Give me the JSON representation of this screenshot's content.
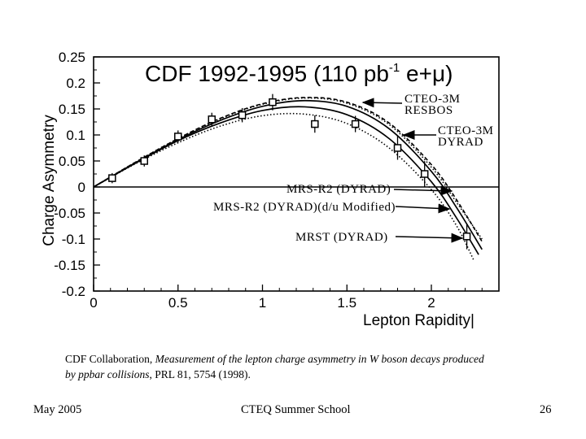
{
  "chart_data": {
    "type": "line",
    "title": "CDF 1992-1995 (110 pb",
    "title_sup": "-1",
    "title_tail": " e+μ)",
    "xlabel": "Lepton Rapidity|",
    "ylabel": "Charge Asymmetry",
    "xlim": [
      0,
      2.4
    ],
    "ylim": [
      -0.2,
      0.25
    ],
    "x_ticks": [
      "0",
      "0.5",
      "1",
      "1.5",
      "2"
    ],
    "y_ticks": [
      "0.25",
      "0.2",
      "0.15",
      "0.1",
      "0.05",
      "0",
      "-0.05",
      "-0.1",
      "-0.15",
      "-0.2"
    ],
    "data_points": [
      {
        "x": 0.11,
        "y": 0.017,
        "err": 0.005
      },
      {
        "x": 0.3,
        "y": 0.05,
        "err": 0.006
      },
      {
        "x": 0.5,
        "y": 0.097,
        "err": 0.007
      },
      {
        "x": 0.7,
        "y": 0.13,
        "err": 0.008
      },
      {
        "x": 0.88,
        "y": 0.138,
        "err": 0.009
      },
      {
        "x": 1.06,
        "y": 0.163,
        "err": 0.011
      },
      {
        "x": 1.31,
        "y": 0.121,
        "err": 0.012
      },
      {
        "x": 1.55,
        "y": 0.121,
        "err": 0.011
      },
      {
        "x": 1.8,
        "y": 0.075,
        "err": 0.018
      },
      {
        "x": 1.96,
        "y": 0.025,
        "err": 0.02
      },
      {
        "x": 2.21,
        "y": -0.095,
        "err": 0.02
      }
    ],
    "series": [
      {
        "name": "CTEO-3M RESBOS",
        "style": "dashed",
        "color": "#000000",
        "x": [
          0,
          0.25,
          0.5,
          0.75,
          1.0,
          1.25,
          1.5,
          1.75,
          2.0,
          2.15,
          2.3
        ],
        "y": [
          0,
          0.048,
          0.093,
          0.132,
          0.16,
          0.172,
          0.163,
          0.123,
          0.043,
          -0.025,
          -0.105
        ]
      },
      {
        "name": "MRS-R2 (DYRAD)",
        "style": "dotted",
        "color": "#000000",
        "x": [
          0,
          0.25,
          0.5,
          0.75,
          1.0,
          1.25,
          1.5,
          1.75,
          2.0,
          2.15,
          2.3
        ],
        "y": [
          0,
          0.048,
          0.093,
          0.131,
          0.159,
          0.171,
          0.161,
          0.12,
          0.038,
          -0.03,
          -0.1
        ]
      },
      {
        "name": "CTEO-3M DYRAD",
        "style": "solid",
        "color": "#000000",
        "x": [
          0,
          0.25,
          0.5,
          0.75,
          1.0,
          1.25,
          1.5,
          1.75,
          2.0,
          2.15,
          2.3
        ],
        "y": [
          0,
          0.047,
          0.091,
          0.128,
          0.155,
          0.166,
          0.155,
          0.112,
          0.03,
          -0.04,
          -0.12
        ]
      },
      {
        "name": "MRS-R2 (DYRAD)(d/u Modified)",
        "style": "solid",
        "color": "#000000",
        "x": [
          0,
          0.25,
          0.5,
          0.75,
          1.0,
          1.25,
          1.5,
          1.75,
          2.0,
          2.15,
          2.28
        ],
        "y": [
          0,
          0.046,
          0.089,
          0.123,
          0.147,
          0.154,
          0.139,
          0.093,
          0.01,
          -0.06,
          -0.13
        ]
      },
      {
        "name": "MRST (DYRAD)",
        "style": "dotted",
        "color": "#000000",
        "x": [
          0,
          0.25,
          0.5,
          0.75,
          1.0,
          1.25,
          1.5,
          1.75,
          2.0,
          2.15,
          2.25
        ],
        "y": [
          0,
          0.045,
          0.085,
          0.117,
          0.137,
          0.14,
          0.122,
          0.075,
          -0.005,
          -0.075,
          -0.14
        ]
      }
    ],
    "annotations": {
      "cteq_resbos": [
        "CTEO-3M",
        "RESBOS"
      ],
      "cteq_dyrad": [
        "CTEO-3M",
        "DYRAD"
      ],
      "mrs_r2": "MRS-R2 (DYRAD)",
      "mrs_r2_mod": "MRS-R2 (DYRAD)(d/u Modified)",
      "mrst": "MRST (DYRAD)"
    },
    "grid": false
  },
  "citation": {
    "prefix": "CDF Collaboration, ",
    "title": "Measurement of the lepton charge asymmetry in W boson decays produced by ppbar collisions",
    "suffix": ", PRL 81, 5754 (1998)."
  },
  "footer": {
    "date": "May 2005",
    "event": "CTEQ Summer School",
    "page": "26"
  }
}
